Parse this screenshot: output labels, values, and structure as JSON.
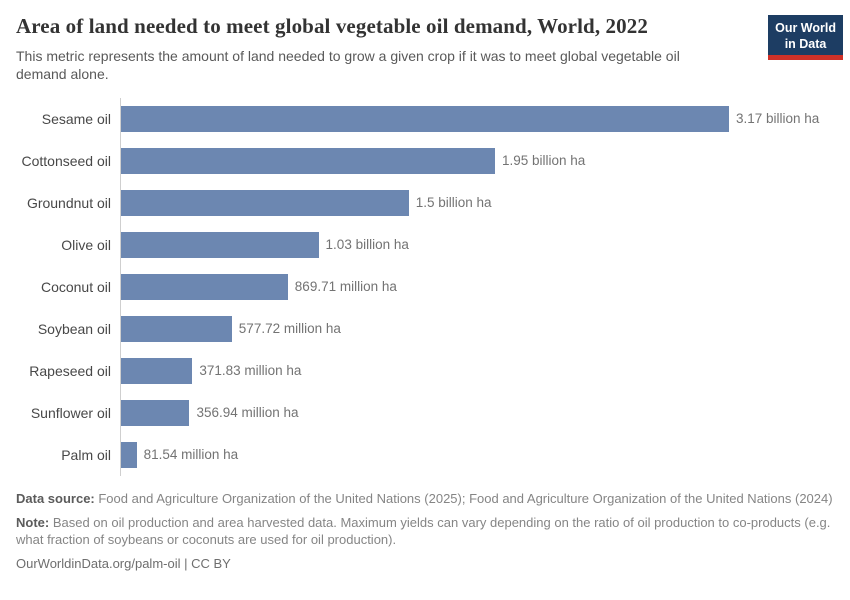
{
  "header": {
    "title": "Area of land needed to meet global vegetable oil demand, World, 2022",
    "subtitle": "This metric represents the amount of land needed to grow a given crop if it was to meet global vegetable oil demand alone.",
    "logo": {
      "line1": "Our World",
      "line2": "in Data",
      "bg_color": "#1d3d63",
      "accent_color": "#cf3128"
    }
  },
  "chart_data": {
    "type": "bar",
    "orientation": "horizontal",
    "title": "Area of land needed to meet global vegetable oil demand, World, 2022",
    "xlabel": "",
    "ylabel": "",
    "unit": "million ha",
    "xlim_million_ha": [
      0,
      3170
    ],
    "grid": false,
    "legend": false,
    "bar_color": "#6c87b1",
    "categories": [
      "Sesame oil",
      "Cottonseed oil",
      "Groundnut oil",
      "Olive oil",
      "Coconut oil",
      "Soybean oil",
      "Rapeseed oil",
      "Sunflower oil",
      "Palm oil"
    ],
    "values_million_ha": [
      3170,
      1950,
      1500,
      1030,
      869.71,
      577.72,
      371.83,
      356.94,
      81.54
    ],
    "value_labels": [
      "3.17 billion ha",
      "1.95 billion ha",
      "1.5 billion ha",
      "1.03 billion ha",
      "869.71 million ha",
      "577.72 million ha",
      "371.83 million ha",
      "356.94 million ha",
      "81.54 million ha"
    ]
  },
  "footer": {
    "data_source_label": "Data source:",
    "data_source_text": " Food and Agriculture Organization of the United Nations (2025); Food and Agriculture Organization of the United Nations (2024)",
    "note_label": "Note:",
    "note_text": " Based on oil production and area harvested data. Maximum yields can vary depending on the ratio of oil production to co-products (e.g. what fraction of soybeans or coconuts are used for oil production).",
    "origin_url": "OurWorldinData.org/palm-oil | CC BY"
  }
}
